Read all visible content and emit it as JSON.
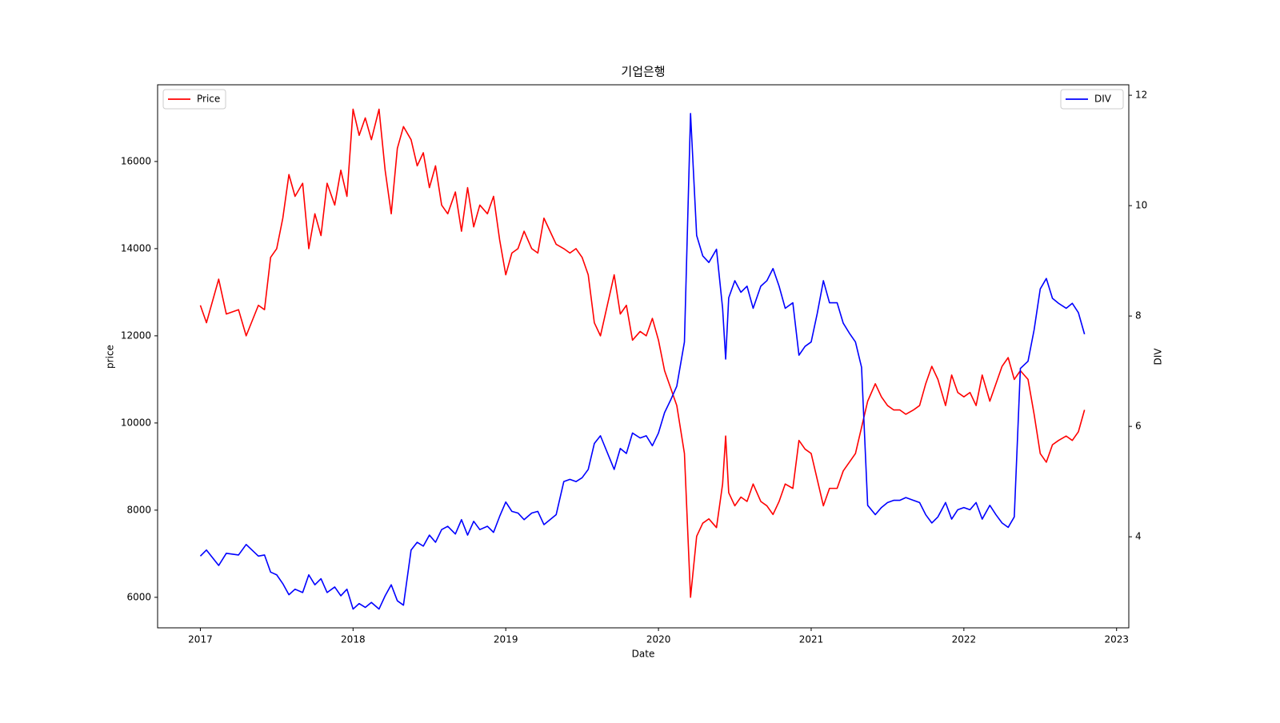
{
  "chart_data": {
    "type": "line",
    "title": "기업은행",
    "xlabel": "Date",
    "ylabel": "price",
    "y2label": "DIV",
    "x": [
      2017.0,
      2017.04,
      2017.08,
      2017.12,
      2017.17,
      2017.25,
      2017.3,
      2017.38,
      2017.42,
      2017.46,
      2017.5,
      2017.54,
      2017.58,
      2017.62,
      2017.67,
      2017.71,
      2017.75,
      2017.79,
      2017.83,
      2017.88,
      2017.92,
      2017.96,
      2018.0,
      2018.04,
      2018.08,
      2018.12,
      2018.17,
      2018.21,
      2018.25,
      2018.29,
      2018.33,
      2018.38,
      2018.42,
      2018.46,
      2018.5,
      2018.54,
      2018.58,
      2018.62,
      2018.67,
      2018.71,
      2018.75,
      2018.79,
      2018.83,
      2018.88,
      2018.92,
      2018.96,
      2019.0,
      2019.04,
      2019.08,
      2019.12,
      2019.17,
      2019.21,
      2019.25,
      2019.29,
      2019.33,
      2019.38,
      2019.42,
      2019.46,
      2019.5,
      2019.54,
      2019.58,
      2019.62,
      2019.71,
      2019.75,
      2019.79,
      2019.83,
      2019.88,
      2019.92,
      2019.96,
      2020.0,
      2020.04,
      2020.08,
      2020.12,
      2020.17,
      2020.21,
      2020.25,
      2020.29,
      2020.33,
      2020.38,
      2020.42,
      2020.44,
      2020.46,
      2020.5,
      2020.54,
      2020.58,
      2020.62,
      2020.67,
      2020.71,
      2020.75,
      2020.79,
      2020.83,
      2020.88,
      2020.92,
      2020.96,
      2021.0,
      2021.04,
      2021.08,
      2021.12,
      2021.17,
      2021.21,
      2021.25,
      2021.29,
      2021.33,
      2021.37,
      2021.42,
      2021.46,
      2021.5,
      2021.54,
      2021.58,
      2021.62,
      2021.67,
      2021.71,
      2021.75,
      2021.79,
      2021.83,
      2021.88,
      2021.92,
      2021.96,
      2022.0,
      2022.04,
      2022.08,
      2022.12,
      2022.17,
      2022.21,
      2022.25,
      2022.29,
      2022.33,
      2022.37,
      2022.42,
      2022.46,
      2022.5,
      2022.54,
      2022.58,
      2022.62,
      2022.67,
      2022.71,
      2022.75,
      2022.79
    ],
    "series": [
      {
        "name": "Price",
        "color": "#ff0000",
        "axis": "y",
        "legend_loc": "upper left",
        "values": [
          12700,
          12300,
          12800,
          13300,
          12500,
          12600,
          12000,
          12700,
          12600,
          13800,
          14000,
          14700,
          15700,
          15200,
          15500,
          14000,
          14800,
          14300,
          15500,
          15000,
          15800,
          15200,
          17200,
          16600,
          17000,
          16500,
          17200,
          15800,
          14800,
          16300,
          16800,
          16500,
          15900,
          16200,
          15400,
          15900,
          15000,
          14800,
          15300,
          14400,
          15400,
          14500,
          15000,
          14800,
          15200,
          14200,
          13400,
          13900,
          14000,
          14400,
          14000,
          13900,
          14700,
          14400,
          14100,
          14000,
          13900,
          14000,
          13800,
          13400,
          12300,
          12000,
          13400,
          12500,
          12700,
          11900,
          12100,
          12000,
          12400,
          11900,
          11200,
          10800,
          10400,
          9300,
          6000,
          7400,
          7700,
          7800,
          7600,
          8600,
          9700,
          8400,
          8100,
          8300,
          8200,
          8600,
          8200,
          8100,
          7900,
          8200,
          8600,
          8500,
          9600,
          9400,
          9300,
          8700,
          8100,
          8500,
          8500,
          8900,
          9100,
          9300,
          9900,
          10500,
          10900,
          10600,
          10400,
          10300,
          10300,
          10200,
          10300,
          10400,
          10900,
          11300,
          11000,
          10400,
          11100,
          10700,
          10600,
          10700,
          10400,
          11100,
          10500,
          10900,
          11300,
          11500,
          11000,
          11200,
          11000,
          10200,
          9300,
          9100,
          9500,
          9600,
          9700,
          9600,
          9800,
          10300
        ]
      },
      {
        "name": "DIV",
        "color": "#0000ff",
        "axis": "y2",
        "legend_loc": "upper right",
        "values": [
          3.65,
          3.76,
          3.62,
          3.48,
          3.7,
          3.67,
          3.86,
          3.65,
          3.67,
          3.36,
          3.31,
          3.15,
          2.95,
          3.05,
          2.99,
          3.31,
          3.13,
          3.24,
          2.99,
          3.09,
          2.93,
          3.05,
          2.69,
          2.79,
          2.72,
          2.81,
          2.69,
          2.93,
          3.13,
          2.84,
          2.76,
          3.76,
          3.9,
          3.83,
          4.03,
          3.9,
          4.13,
          4.19,
          4.05,
          4.31,
          4.03,
          4.28,
          4.13,
          4.19,
          4.08,
          4.37,
          4.63,
          4.46,
          4.43,
          4.31,
          4.43,
          4.46,
          4.22,
          4.31,
          4.4,
          5.0,
          5.04,
          5.0,
          5.07,
          5.22,
          5.69,
          5.83,
          5.22,
          5.6,
          5.51,
          5.88,
          5.79,
          5.83,
          5.65,
          5.88,
          6.25,
          6.48,
          6.73,
          7.53,
          11.67,
          9.46,
          9.09,
          8.97,
          9.21,
          8.14,
          7.22,
          8.33,
          8.64,
          8.43,
          8.54,
          8.14,
          8.54,
          8.64,
          8.86,
          8.54,
          8.14,
          8.24,
          7.29,
          7.45,
          7.53,
          8.05,
          8.64,
          8.24,
          8.24,
          7.87,
          7.69,
          7.53,
          7.07,
          4.57,
          4.4,
          4.53,
          4.62,
          4.66,
          4.66,
          4.71,
          4.66,
          4.62,
          4.4,
          4.25,
          4.36,
          4.62,
          4.32,
          4.49,
          4.53,
          4.49,
          4.62,
          4.32,
          4.57,
          4.4,
          4.25,
          4.17,
          4.36,
          7.05,
          7.18,
          7.75,
          8.49,
          8.68,
          8.32,
          8.23,
          8.14,
          8.23,
          8.06,
          7.67
        ]
      }
    ],
    "xlim": [
      2016.72,
      2023.08
    ],
    "xticks": [
      2017,
      2018,
      2019,
      2020,
      2021,
      2022,
      2023
    ],
    "ylim": [
      5300,
      17760
    ],
    "yticks": [
      6000,
      8000,
      10000,
      12000,
      14000,
      16000
    ],
    "y2lim": [
      2.35,
      12.19
    ],
    "y2ticks": [
      4,
      6,
      8,
      10,
      12
    ]
  }
}
